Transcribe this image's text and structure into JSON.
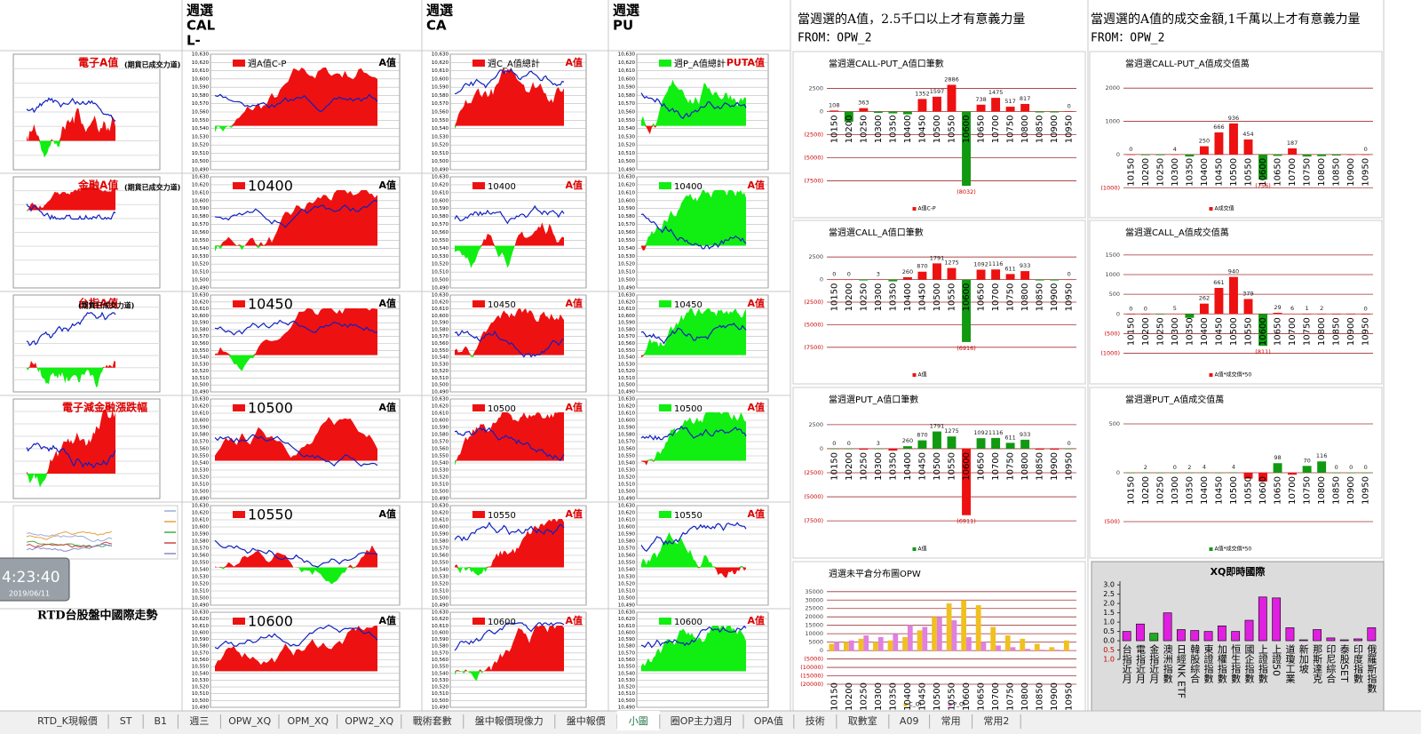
{
  "header": {
    "col_titles": [
      [
        "週選",
        "CAL",
        "L-"
      ],
      [
        "週選",
        "CA"
      ],
      [
        "週選",
        "PU"
      ]
    ],
    "notes": [
      {
        "title": "當週選的A值，2.5千口以上才有意義力量",
        "source": "FROM：OPW_2"
      },
      {
        "title": "當週選的A值的成交金額,1千萬以上才有意義力量",
        "source": "FROM：OPW_2"
      }
    ]
  },
  "mini": {
    "ylim": [
      10490,
      10630
    ],
    "yticks": [
      {
        "value": 10630,
        "label": "10,630"
      },
      {
        "value": 10620,
        "label": "10,620"
      },
      {
        "value": 10610,
        "label": "10,610"
      },
      {
        "value": 10600,
        "label": "10,600"
      },
      {
        "value": 10590,
        "label": "10,590"
      },
      {
        "value": 10580,
        "label": "10,580"
      },
      {
        "value": 10570,
        "label": "10,570"
      },
      {
        "value": 10560,
        "label": "10,560"
      },
      {
        "value": 10550,
        "label": "10,550"
      },
      {
        "value": 10540,
        "label": "10,540"
      },
      {
        "value": 10530,
        "label": "10,530"
      },
      {
        "value": 10520,
        "label": "10,520"
      },
      {
        "value": 10510,
        "label": "10,510"
      },
      {
        "value": 10500,
        "label": "10,500"
      },
      {
        "value": 10490,
        "label": "10,490"
      }
    ],
    "left_titles": [
      "電子A值",
      "金融A值",
      "台指A值",
      "電子減金融漲跌幅"
    ],
    "left_subtitle": "(期貨已成交力道)",
    "columns": [
      {
        "legends": [
          "週A值C-P",
          "10400",
          "10450",
          "10500",
          "10550",
          "10600"
        ],
        "tags": [
          "A值",
          "A值",
          "A值",
          "A值",
          "A值",
          "A值"
        ]
      },
      {
        "legends": [
          "週C_A值總計",
          "10400",
          "10450",
          "10500",
          "10550",
          "10600"
        ],
        "tags": [
          "A值",
          "A值",
          "A值",
          "A值",
          "A值",
          "A值"
        ]
      },
      {
        "legends": [
          "週P_A值總計",
          "10400",
          "10450",
          "10500",
          "10550",
          "10600"
        ],
        "tags": [
          "PUTA值",
          "A值",
          "A值",
          "A值",
          "A值",
          "A值"
        ]
      }
    ],
    "clock": "4:23:40",
    "date": "2019/06/11",
    "caption": "RTD台股盤中國際走勢"
  },
  "strikes": [
    "10150",
    "10200",
    "10250",
    "10300",
    "10350",
    "10400",
    "10450",
    "10500",
    "10550",
    "10600",
    "10650",
    "10700",
    "10750",
    "10800",
    "10850",
    "10900",
    "10950"
  ],
  "charts": [
    {
      "type": "bar",
      "title": "當週選CALL-PUT_A值口筆數",
      "legend": "A值C-P",
      "pos_color": "#ee1111",
      "neg_color": "#119911",
      "ylim": [
        -8600,
        3600
      ],
      "yticks": [
        2500,
        0,
        {
          "value": -2500,
          "label": "(2500)"
        },
        {
          "value": -5000,
          "label": "(5000)"
        },
        {
          "value": -7500,
          "label": "(7500)"
        }
      ],
      "values": [
        108,
        -1100,
        363,
        -150,
        -200,
        -300,
        1352,
        1597,
        2886,
        -8032,
        738,
        1475,
        517,
        817,
        -100,
        -100,
        0
      ],
      "value_labels": [
        "108",
        null,
        "363",
        null,
        null,
        null,
        "1352",
        "1597",
        "2886",
        "(8032)",
        "738",
        "1475",
        "517",
        "817",
        null,
        null,
        "0"
      ]
    },
    {
      "type": "bar",
      "title": "當週選CALL-PUT_A值成交值萬",
      "legend": "A成交值",
      "pos_color": "#ee1111",
      "neg_color": "#119911",
      "ylim": [
        -1100,
        2300
      ],
      "yticks": [
        2000,
        1000,
        0,
        {
          "value": -1000,
          "label": "(1000)"
        }
      ],
      "values": [
        0,
        -20,
        -20,
        4,
        -60,
        250,
        666,
        936,
        454,
        -756,
        -40,
        187,
        -60,
        -50,
        -30,
        0,
        0
      ],
      "value_labels": [
        "0",
        null,
        null,
        "4",
        null,
        "250",
        "666",
        "936",
        "454",
        "(756)",
        null,
        "187",
        null,
        null,
        null,
        null,
        "0"
      ]
    },
    {
      "type": "bar",
      "title": "當週選CALL_A值口筆數",
      "legend": "A值",
      "pos_color": "#ee1111",
      "neg_color": "#119911",
      "ylim": [
        -8600,
        3600
      ],
      "yticks": [
        2500,
        0,
        {
          "value": -2500,
          "label": "(2500)"
        },
        {
          "value": -5000,
          "label": "(5000)"
        },
        {
          "value": -7500,
          "label": "(7500)"
        }
      ],
      "values": [
        0,
        0,
        -100,
        3,
        -200,
        260,
        870,
        1791,
        1275,
        -6916,
        1092,
        1116,
        611,
        933,
        -100,
        -100,
        0
      ],
      "value_labels": [
        "0",
        "0",
        null,
        "3",
        null,
        "260",
        "870",
        "1791",
        "1275",
        "(6916)",
        "1092",
        "1116",
        "611",
        "933",
        null,
        null,
        "0"
      ]
    },
    {
      "type": "bar",
      "title": "當週選CALL_A值成交值萬",
      "legend": "A值*成交價*50",
      "pos_color": "#ee1111",
      "neg_color": "#119911",
      "ylim": [
        -1100,
        1700
      ],
      "yticks": [
        1500,
        1000,
        500,
        0,
        {
          "value": -500,
          "label": "(500)"
        },
        {
          "value": -1000,
          "label": "(1000)"
        }
      ],
      "values": [
        0,
        0,
        -10,
        5,
        -100,
        262,
        661,
        940,
        379,
        -811,
        29,
        6,
        1,
        2,
        0,
        0,
        0
      ],
      "value_labels": [
        "0",
        "0",
        null,
        "5",
        null,
        "262",
        "661",
        "940",
        "379",
        "(811)",
        "29",
        "6",
        "1",
        "2",
        null,
        null,
        "0"
      ]
    },
    {
      "type": "bar",
      "title": "當週選PUT_A值口筆數",
      "legend": "A值",
      "pos_color": "#119911",
      "neg_color": "#ee1111",
      "ylim": [
        -8600,
        3600
      ],
      "yticks": [
        2500,
        0,
        {
          "value": -2500,
          "label": "(2500)"
        },
        {
          "value": -5000,
          "label": "(5000)"
        },
        {
          "value": -7500,
          "label": "(7500)"
        }
      ],
      "values": [
        0,
        0,
        -100,
        3,
        -200,
        260,
        870,
        1791,
        1275,
        -6911,
        1092,
        1116,
        611,
        933,
        -100,
        -100,
        0
      ],
      "value_labels": [
        "0",
        "0",
        null,
        "3",
        null,
        "260",
        "870",
        "1791",
        "1275",
        "(6911)",
        "1092",
        "1116",
        "611",
        "933",
        null,
        null,
        "0"
      ]
    },
    {
      "type": "bar",
      "title": "當週選PUT_A值成交值萬",
      "legend": "A值*成交價*50",
      "pos_color": "#119911",
      "neg_color": "#ee1111",
      "ylim": [
        -600,
        600
      ],
      "yticks": [
        500,
        0,
        {
          "value": -500,
          "label": "(500)"
        }
      ],
      "values": [
        0,
        2,
        0,
        0,
        2,
        4,
        0,
        4,
        -60,
        -90,
        98,
        -20,
        70,
        116,
        0,
        0,
        0
      ],
      "value_labels": [
        null,
        "2",
        null,
        "0",
        "2",
        "4",
        null,
        "4",
        null,
        null,
        "98",
        null,
        "70",
        "116",
        "0",
        "0",
        "0"
      ]
    }
  ],
  "oi": {
    "type": "grouped_bar",
    "title": "週選未平倉分布圖OPW",
    "ylim": [
      -20000,
      37000
    ],
    "yticks": [
      35000,
      30000,
      25000,
      20000,
      15000,
      10000,
      5000,
      0,
      {
        "value": -5000,
        "label": "(5000)"
      },
      {
        "value": -10000,
        "label": "(10000)"
      },
      {
        "value": -15000,
        "label": "(15000)"
      },
      {
        "value": -20000,
        "label": "(20000)"
      }
    ],
    "series": [
      {
        "name": "C_OI",
        "color": "#f0c020",
        "values": [
          4000,
          5000,
          7000,
          5000,
          6000,
          8000,
          12000,
          20000,
          28000,
          30000,
          27000,
          14000,
          9000,
          7000,
          4000,
          2000,
          6000
        ]
      },
      {
        "name": "P_OI",
        "color": "#e080e0",
        "values": [
          5000,
          6000,
          9000,
          8000,
          10000,
          15000,
          14000,
          20000,
          18000,
          8000,
          5000,
          3000,
          2000,
          1000,
          500,
          500,
          300
        ]
      }
    ]
  },
  "xq": {
    "type": "bar",
    "title": "XQ即時國際",
    "ylim": [
      -1.0,
      3.2
    ],
    "yticks": [
      {
        "value": 3.0,
        "label": "3.0"
      },
      {
        "value": 2.5,
        "label": "2.5"
      },
      {
        "value": 2.0,
        "label": "2.0"
      },
      {
        "value": 1.5,
        "label": "1.5"
      },
      {
        "value": 1.0,
        "label": "1.0"
      },
      {
        "value": 0.5,
        "label": "0.5"
      },
      {
        "value": 0,
        "label": "0.0"
      },
      {
        "value": -0.5,
        "label": "0.5"
      },
      {
        "value": -1.0,
        "label": "1.0"
      }
    ],
    "categories": [
      "台指近月",
      "電指近月",
      "金指近月",
      "澳洲指數",
      "日經NK ETF",
      "韓股綜合",
      "東證指數",
      "加權指數",
      "恒生指數",
      "國企指數",
      "上證指數",
      "上證50",
      "道瓊工業",
      "新加坡",
      "那斯達克",
      "印尼綜合",
      "泰股SET",
      "印度指數",
      "俄羅斯指數"
    ],
    "values": [
      0.5,
      0.9,
      0.4,
      1.5,
      0.6,
      0.55,
      0.5,
      0.8,
      0.5,
      1.1,
      2.35,
      2.3,
      0.7,
      0.05,
      0.6,
      0.15,
      0.05,
      0.1,
      0.7
    ],
    "colors": [
      "#e020e0",
      "#e020e0",
      "#22aa22",
      "#e020e0",
      "#e020e0",
      "#e020e0",
      "#e020e0",
      "#e020e0",
      "#e020e0",
      "#e020e0",
      "#e020e0",
      "#e020e0",
      "#e020e0",
      "#e020e0",
      "#e020e0",
      "#e020e0",
      "#e020e0",
      "#e020e0",
      "#e020e0"
    ]
  },
  "tabs": [
    "RTD_K現報價",
    "ST",
    "B1",
    "週三",
    "OPW_XQ",
    "OPM_XQ",
    "OPW2_XQ",
    "戰術套數",
    "盤中報價現像力",
    "盤中報價",
    "小圖",
    "圈OP主力週月",
    "OPA值",
    "技術",
    "取數室",
    "A09",
    "常用",
    "常用2"
  ],
  "active_tab": 10
}
